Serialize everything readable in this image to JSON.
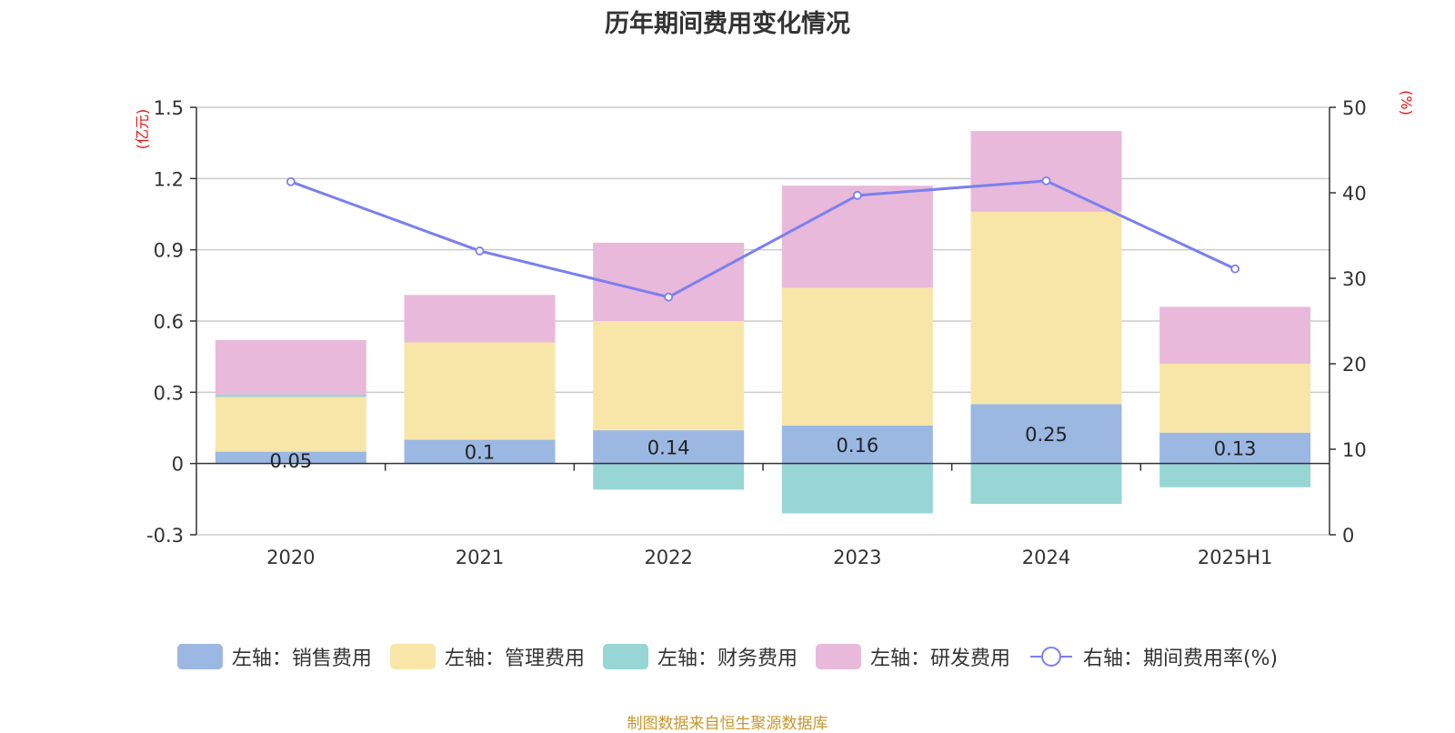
{
  "chart_data": {
    "type": "bar",
    "title": "历年期间费用变化情况",
    "categories": [
      "2020",
      "2021",
      "2022",
      "2023",
      "2024",
      "2025H1"
    ],
    "left_axis": {
      "unit_label": "(亿元)",
      "ylim": [
        -0.3,
        1.5
      ],
      "ticks": [
        "-0.3",
        "0",
        "0.3",
        "0.6",
        "0.9",
        "1.2",
        "1.5"
      ]
    },
    "right_axis": {
      "unit_label": "(%)",
      "ylim": [
        0,
        50
      ],
      "ticks": [
        "0",
        "10",
        "20",
        "30",
        "40",
        "50"
      ]
    },
    "series": [
      {
        "name": "左轴：销售费用",
        "axis": "left",
        "kind": "bar",
        "color": "#9bb8e3",
        "values": [
          0.05,
          0.1,
          0.14,
          0.16,
          0.25,
          0.13
        ],
        "data_labels": [
          "0.05",
          "0.1",
          "0.14",
          "0.16",
          "0.25",
          "0.13"
        ]
      },
      {
        "name": "左轴：管理费用",
        "axis": "left",
        "kind": "bar",
        "color": "#f8e6a8",
        "values": [
          0.23,
          0.41,
          0.46,
          0.58,
          0.81,
          0.29
        ]
      },
      {
        "name": "左轴：财务费用",
        "axis": "left",
        "kind": "bar",
        "color": "#98d5d5",
        "values": [
          0.01,
          0.0,
          -0.11,
          -0.21,
          -0.17,
          -0.1
        ]
      },
      {
        "name": "左轴：研发费用",
        "axis": "left",
        "kind": "bar",
        "color": "#e8b9da",
        "values": [
          0.23,
          0.2,
          0.33,
          0.43,
          0.34,
          0.24
        ]
      },
      {
        "name": "右轴：期间费用率(%)",
        "axis": "right",
        "kind": "line",
        "color": "#7b7ff0",
        "values": [
          41.3,
          33.2,
          27.8,
          39.7,
          41.4,
          31.1
        ]
      }
    ],
    "grid": true,
    "legend_position": "bottom"
  },
  "footer": "制图数据来自恒生聚源数据库"
}
